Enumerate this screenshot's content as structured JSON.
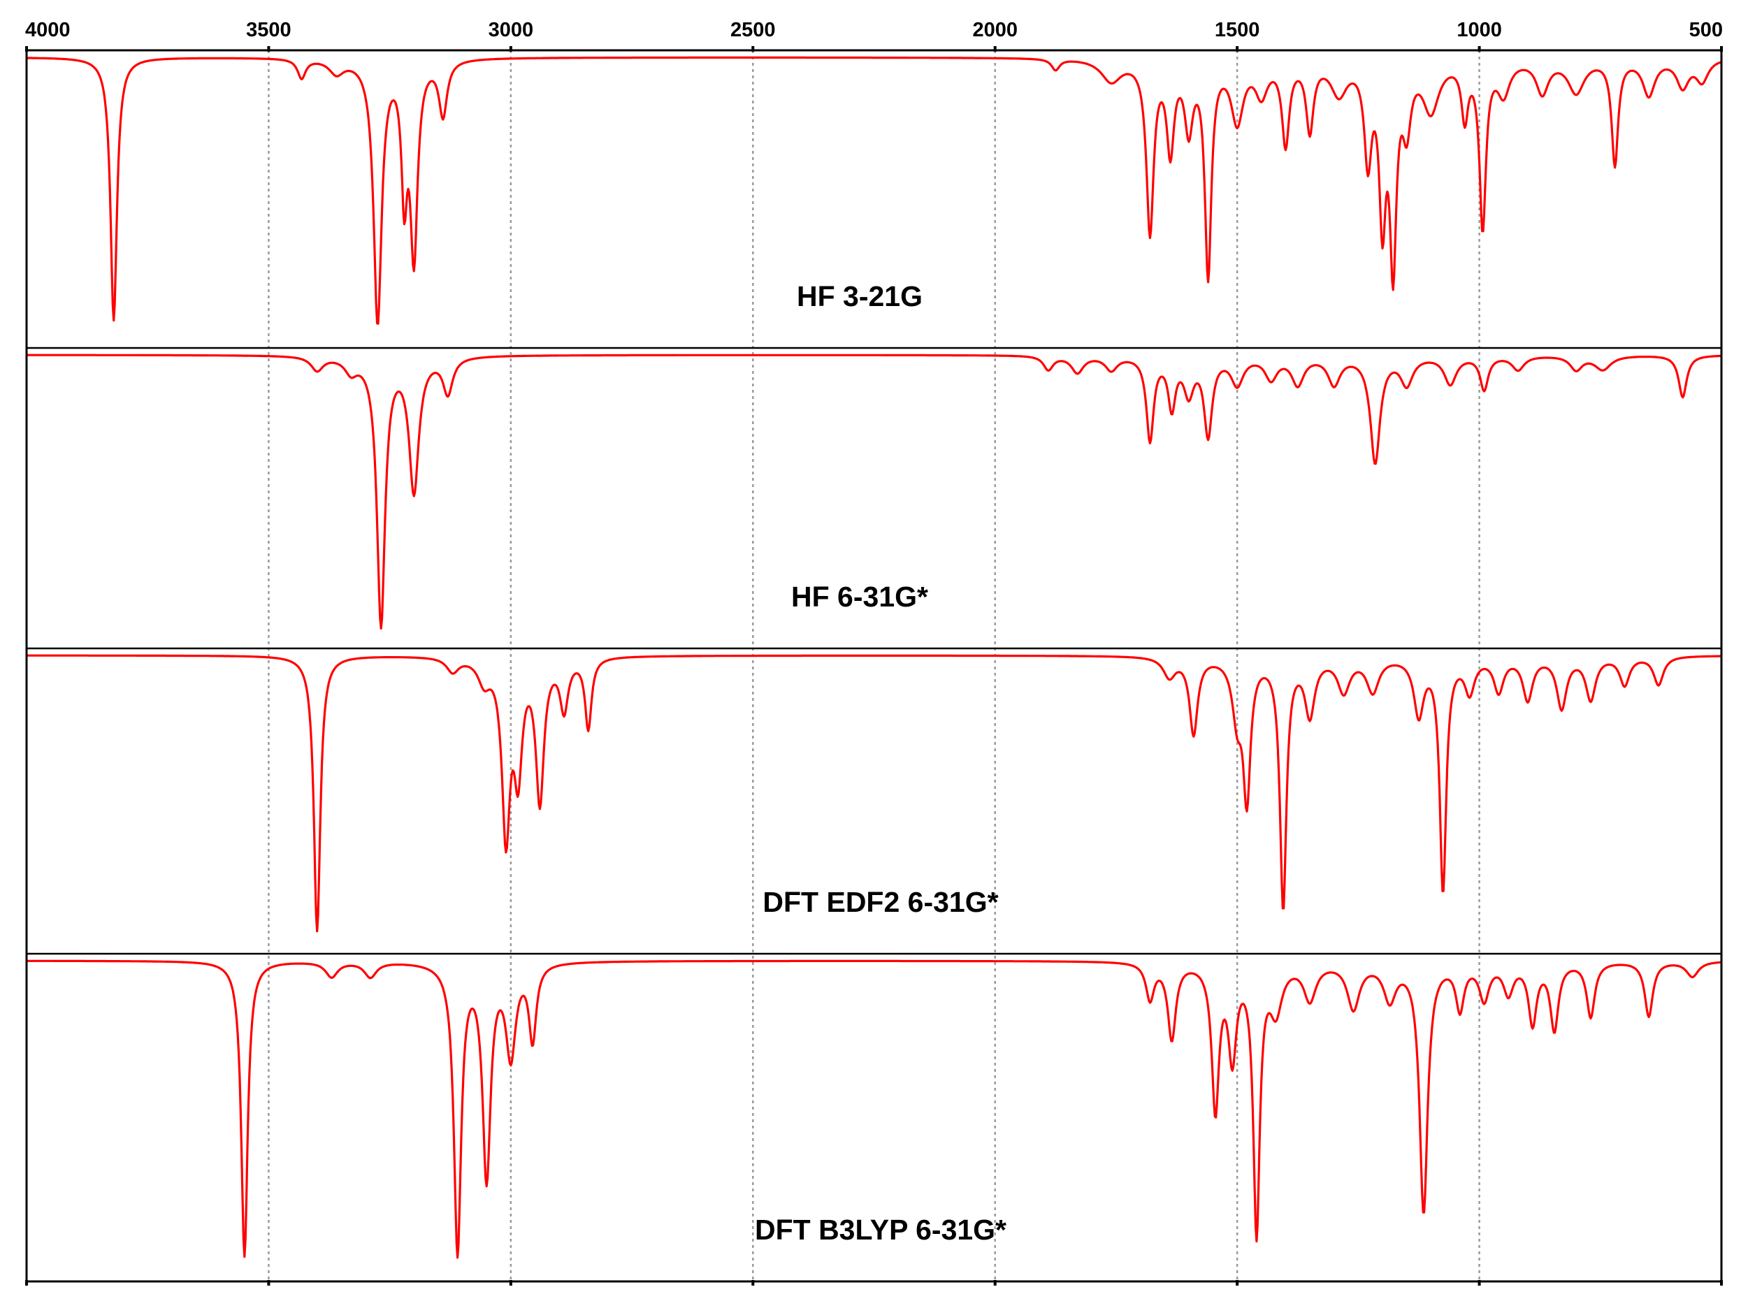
{
  "chart_data": {
    "type": "line",
    "x_axis": {
      "reversed": true,
      "range": [
        4000,
        500
      ],
      "ticks": [
        4000,
        3500,
        3000,
        2500,
        2000,
        1500,
        1000,
        500
      ],
      "tick_labels": [
        "4000",
        "3500",
        "3000",
        "2500",
        "2000",
        "1500",
        "1000",
        "500"
      ]
    },
    "grid": true,
    "series_color": "#ff0000",
    "panels": [
      {
        "label": "HF 3-21G",
        "peaks": [
          [
            3820,
            0.95,
            8
          ],
          [
            3432,
            0.07,
            10
          ],
          [
            3360,
            0.05,
            18
          ],
          [
            3275,
            0.95,
            10
          ],
          [
            3220,
            0.45,
            7
          ],
          [
            3200,
            0.7,
            9
          ],
          [
            3140,
            0.2,
            10
          ],
          [
            1875,
            0.04,
            10
          ],
          [
            1760,
            0.08,
            25
          ],
          [
            1680,
            0.62,
            9
          ],
          [
            1638,
            0.32,
            9
          ],
          [
            1600,
            0.24,
            10
          ],
          [
            1560,
            0.77,
            8
          ],
          [
            1500,
            0.22,
            15
          ],
          [
            1450,
            0.12,
            15
          ],
          [
            1400,
            0.3,
            9
          ],
          [
            1350,
            0.25,
            9
          ],
          [
            1290,
            0.12,
            20
          ],
          [
            1230,
            0.35,
            9
          ],
          [
            1200,
            0.55,
            8
          ],
          [
            1178,
            0.72,
            8
          ],
          [
            1150,
            0.22,
            10
          ],
          [
            1100,
            0.18,
            20
          ],
          [
            1030,
            0.2,
            8
          ],
          [
            993,
            0.6,
            8
          ],
          [
            950,
            0.12,
            15
          ],
          [
            870,
            0.12,
            15
          ],
          [
            800,
            0.12,
            20
          ],
          [
            720,
            0.38,
            8
          ],
          [
            650,
            0.13,
            15
          ],
          [
            580,
            0.1,
            15
          ],
          [
            540,
            0.08,
            15
          ]
        ]
      },
      {
        "label": "HF 6-31G*",
        "peaks": [
          [
            3400,
            0.05,
            15
          ],
          [
            3330,
            0.05,
            15
          ],
          [
            3268,
            0.96,
            10
          ],
          [
            3200,
            0.48,
            12
          ],
          [
            3130,
            0.13,
            12
          ],
          [
            1890,
            0.05,
            12
          ],
          [
            1830,
            0.06,
            15
          ],
          [
            1760,
            0.05,
            15
          ],
          [
            1680,
            0.3,
            9
          ],
          [
            1635,
            0.18,
            9
          ],
          [
            1600,
            0.13,
            12
          ],
          [
            1560,
            0.28,
            10
          ],
          [
            1500,
            0.1,
            15
          ],
          [
            1430,
            0.08,
            15
          ],
          [
            1375,
            0.1,
            15
          ],
          [
            1300,
            0.1,
            15
          ],
          [
            1215,
            0.38,
            12
          ],
          [
            1150,
            0.1,
            15
          ],
          [
            1060,
            0.1,
            15
          ],
          [
            990,
            0.12,
            10
          ],
          [
            920,
            0.05,
            15
          ],
          [
            800,
            0.05,
            15
          ],
          [
            745,
            0.05,
            20
          ],
          [
            580,
            0.15,
            10
          ]
        ]
      },
      {
        "label": "DFT EDF2 6-31G*",
        "peaks": [
          [
            3400,
            0.97,
            8
          ],
          [
            3120,
            0.05,
            15
          ],
          [
            3055,
            0.08,
            15
          ],
          [
            3010,
            0.62,
            10
          ],
          [
            2985,
            0.38,
            10
          ],
          [
            2940,
            0.5,
            10
          ],
          [
            2890,
            0.18,
            10
          ],
          [
            2840,
            0.25,
            8
          ],
          [
            1640,
            0.07,
            15
          ],
          [
            1590,
            0.27,
            10
          ],
          [
            1500,
            0.2,
            12
          ],
          [
            1480,
            0.48,
            9
          ],
          [
            1405,
            0.88,
            8
          ],
          [
            1350,
            0.2,
            12
          ],
          [
            1280,
            0.12,
            15
          ],
          [
            1220,
            0.12,
            15
          ],
          [
            1125,
            0.2,
            12
          ],
          [
            1075,
            0.82,
            8
          ],
          [
            1020,
            0.12,
            12
          ],
          [
            960,
            0.12,
            12
          ],
          [
            900,
            0.15,
            12
          ],
          [
            830,
            0.18,
            12
          ],
          [
            770,
            0.15,
            12
          ],
          [
            700,
            0.1,
            12
          ],
          [
            630,
            0.1,
            12
          ]
        ]
      },
      {
        "label": "DFT B3LYP 6-31G*",
        "peaks": [
          [
            3550,
            0.97,
            8
          ],
          [
            3370,
            0.05,
            15
          ],
          [
            3290,
            0.05,
            15
          ],
          [
            3110,
            0.95,
            9
          ],
          [
            3050,
            0.7,
            10
          ],
          [
            3000,
            0.3,
            12
          ],
          [
            2955,
            0.25,
            9
          ],
          [
            1680,
            0.12,
            10
          ],
          [
            1635,
            0.25,
            10
          ],
          [
            1545,
            0.48,
            9
          ],
          [
            1510,
            0.3,
            10
          ],
          [
            1460,
            0.88,
            8
          ],
          [
            1420,
            0.15,
            15
          ],
          [
            1350,
            0.12,
            15
          ],
          [
            1260,
            0.15,
            15
          ],
          [
            1185,
            0.12,
            15
          ],
          [
            1115,
            0.82,
            10
          ],
          [
            1040,
            0.15,
            10
          ],
          [
            990,
            0.12,
            12
          ],
          [
            940,
            0.1,
            12
          ],
          [
            890,
            0.2,
            10
          ],
          [
            845,
            0.22,
            10
          ],
          [
            770,
            0.18,
            10
          ],
          [
            650,
            0.18,
            10
          ],
          [
            560,
            0.05,
            15
          ]
        ]
      }
    ]
  }
}
